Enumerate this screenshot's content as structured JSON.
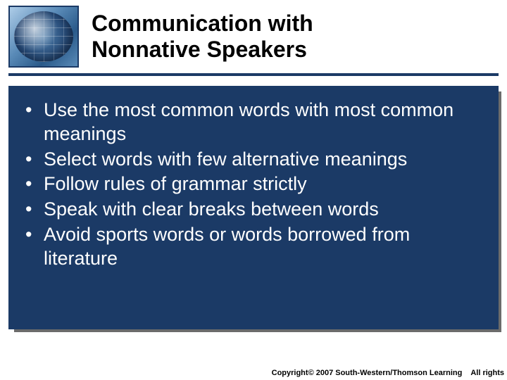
{
  "colors": {
    "brand_dark_blue": "#1b3a66",
    "shadow_gray": "#6b6b6b",
    "background": "#ffffff",
    "text_on_dark": "#ffffff",
    "text_on_light": "#000000"
  },
  "header": {
    "title_line1": "Communication with",
    "title_line2": "Nonnative Speakers",
    "title_fontsize": 32
  },
  "content": {
    "bullets": [
      "Use the most common words with most common meanings",
      "Select words with few alternative meanings",
      "Follow rules of grammar strictly",
      "Speak with clear breaks between words",
      "Avoid sports words or words borrowed from literature"
    ],
    "bullet_fontsize": 27
  },
  "footer": {
    "copyright": "Copyright© 2007 South-Western/Thomson Learning",
    "rights": "All rights"
  }
}
